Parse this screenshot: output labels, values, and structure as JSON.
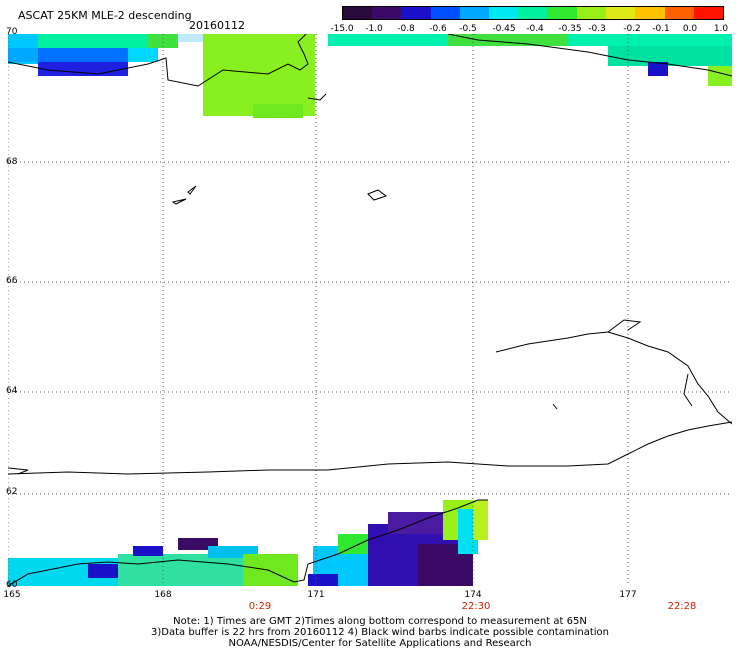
{
  "header": {
    "title": "ASCAT 25KM MLE-2 descending",
    "date": "20160112"
  },
  "colorbar": {
    "labels": [
      "-15.0",
      "-1.0",
      "-0.8",
      "-0.6",
      "-0.5",
      "-0.45",
      "-0.4",
      "-0.35",
      "-0.3",
      "-0.2",
      "-0.1",
      "0.0",
      "1.0"
    ],
    "colors": [
      "#2a0a3a",
      "#3a0a66",
      "#1a10c8",
      "#0050ff",
      "#00a8ff",
      "#00e8f0",
      "#00f0a0",
      "#30e830",
      "#98f018",
      "#e0e818",
      "#ffc000",
      "#ff6000",
      "#ff1400"
    ]
  },
  "axes": {
    "lat_labels": [
      "70",
      "68",
      "66",
      "64",
      "62",
      "60"
    ],
    "lon_labels": [
      "165",
      "168",
      "171",
      "174",
      "177"
    ],
    "time_labels": [
      "0:29",
      "22:30",
      "22:28"
    ]
  },
  "notes": [
    "Note: 1) Times are GMT 2)Times along bottom correspond to measurement at 65N",
    "3)Data buffer is 22 hrs from 20160112 4) Black wind barbs indicate possible contamination",
    "NOAA/NESDIS/Center for Satellite Applications and Research"
  ]
}
